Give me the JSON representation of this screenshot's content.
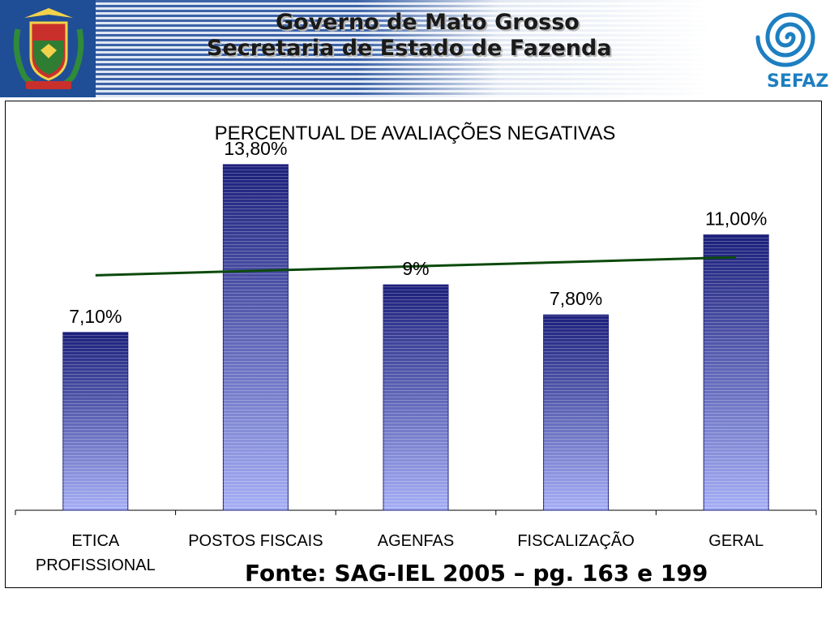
{
  "header": {
    "line1": "Governo de Mato Grosso",
    "line2": "Secretaria de Estado de Fazenda",
    "logo_text": "SEFAZ",
    "crest_icon": "state-coat-of-arms-icon",
    "logo_icon": "sefaz-spiral-icon"
  },
  "colors": {
    "banner_stripe": "#3c63a8",
    "bar_dark": "#1c1f7a",
    "bar_light": "#a6aef5",
    "trend_line": "#0b4a0b",
    "logo_blue": "#1d7fc1"
  },
  "chart_data": {
    "type": "bar",
    "title": "PERCENTUAL DE AVALIAÇÕES NEGATIVAS",
    "categories": [
      "ETICA PROFISSIONAL",
      "POSTOS FISCAIS",
      "AGENFAS",
      "FISCALIZAÇÃO",
      "GERAL"
    ],
    "category_lines": [
      [
        "ETICA",
        "PROFISSIONAL"
      ],
      [
        "POSTOS FISCAIS"
      ],
      [
        "AGENFAS"
      ],
      [
        "FISCALIZAÇÃO"
      ],
      [
        "GERAL"
      ]
    ],
    "values": [
      7.1,
      13.8,
      9.0,
      7.8,
      11.0
    ],
    "data_labels": [
      "7,10%",
      "13,80%",
      "9%",
      "7,80%",
      "11,00%"
    ],
    "ylim": [
      0,
      16
    ],
    "trendline": {
      "type": "linear",
      "color": "#0b4a0b"
    },
    "grid": false,
    "legend": "none"
  },
  "source": "Fonte: SAG-IEL 2005 – pg. 163 e 199"
}
